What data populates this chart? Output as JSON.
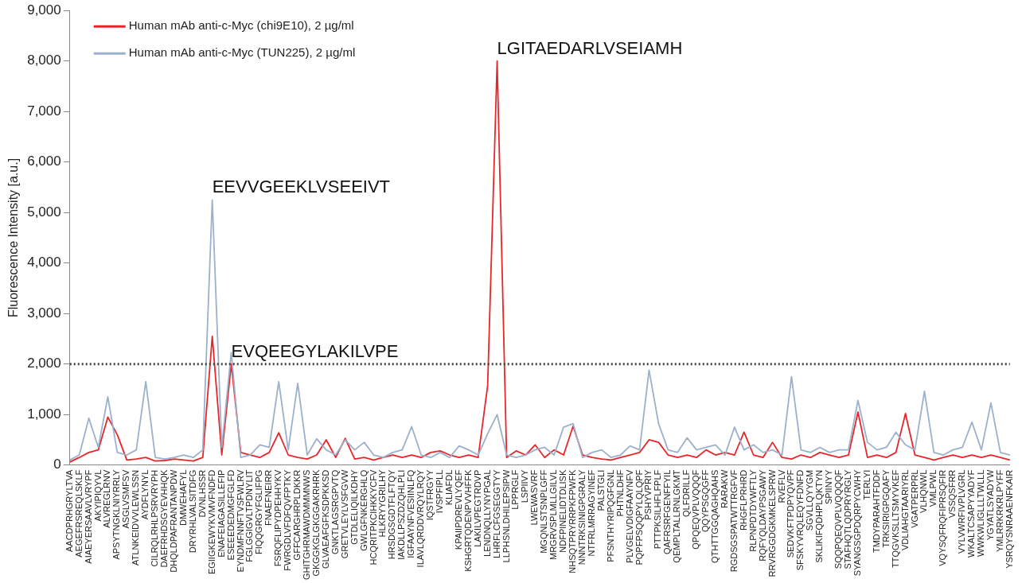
{
  "chart_data": {
    "type": "line",
    "ylabel": "Fluorescence Intensity [a.u.]",
    "categories": [
      "AACDPRHGRYLTVA",
      "AEGEFRSREQLSKLF",
      "AIAEYERSAAVLVRYPF",
      "AKYIPIQYVL",
      "ALVREGLRNV",
      "APSYTNGKLNIYRRLY",
      "ASGLVSMFSV",
      "ATLNKEIDVVLEWLSSN",
      "AYDFLYNYL",
      "CILRQLRHLPSRVRYPH",
      "DAEFRHDSGYEVHHQK",
      "DHQLDPAFRANTANPDW",
      "DMWEHAFYL",
      "DRYRHLVALSITDFG",
      "DVNLHSSR",
      "EGIIGKEWYKVMVFNDFD",
      "ENAFEIAGASILLEFIP",
      "ESEEEDEDMGFGLFD",
      "EYNDMFNNFTVSFWLRV",
      "FGLGGIGVLTPDNYLIT",
      "FIQQGRGYFGLIFPG",
      "FNAEFNEIRR",
      "FSRQFLIPYDPEHHYKV",
      "FWRGDLVFDFQVFPTKY",
      "GFFCARGHRPLDKKR",
      "GHITGHRMAWDMMMNWS",
      "GKGGKGLGKGGAKRHRK",
      "GLVAEAFGFKSDPKKSD",
      "GNKTLAGSRGPVTQ",
      "GRETVLEYLVSFGVW",
      "GTDLELIQILKDHY",
      "GWLGFNKERGHLQ",
      "HCQRITPKCIHKKYCFV",
      "HLKRYYGRILHY",
      "HRSDGSGDTFLFTQY",
      "IAKDLLPSZDZQHLPLI",
      "IGFAAYNFVESIINLFQ",
      "ILAVLQRDDVRQYLRQY",
      "IQSTFRGYY",
      "IVSPFIPLL",
      "KLIAFDL",
      "KPAIIPDREVLYQEF",
      "KSHGRTQDENPVVHFFK",
      "LAKILVPEGTRDVP",
      "LENDNQLLYNYPGAL",
      "LHRFLCFGSEGGTYY",
      "LLPHSNLDHILEPSIPW",
      "LPPRGLF",
      "LSPIIVY",
      "LWEWASVRF",
      "MGQNLSTSNPLGFF",
      "MRGRVSPLMLLGILVL",
      "NDFPINELIDTDLISK",
      "NHSQTPRYRRPKFPWFK",
      "NNNTRKSINIGPGRALY",
      "NTFRLMRRAGYINEF",
      "PALSTGLI",
      "PFSNTHYRIPQGFGNL",
      "PHTNLDHF",
      "PLVGELVDIGFAAYNFV",
      "PQPFPSQQPYLQLQPF",
      "PSHYVPRIY",
      "PTTPKSILHFLFPLF",
      "QAFRSRFGENFFYIL",
      "QEMPLTALLRNLGKMT",
      "QLFDRILLF",
      "QPQEQVPLVQQQF",
      "QQYPSGQGFF",
      "QTHTTGGQAGHQAHS",
      "RARAKW",
      "RGDSGSPATWTTRGFVF",
      "RHGFLPRHRD",
      "RLPNPDTDYWFTLY",
      "RQFYQLDAYPSGAWY",
      "RRVRGGDGKMKELSPRW",
      "RVEFLV",
      "SEDVKFTPDPYQVPF",
      "SFSKYVRQLEQYFDNFD",
      "SGVLLQYYGM",
      "SKLIKIFQDHPLQKTYN",
      "SPIINYY",
      "SQQPQEQVPLVQQQQF",
      "STAFHQTLQDPRYRGLY",
      "SYANGSGPDQRPYCWHY",
      "TERLYI",
      "TMDYPARAHTFDDF",
      "TRKSIRIGPGQAFY",
      "TTQGVKSLLTSMYVKEF",
      "VDLIAHGTAARIYRL",
      "VGATPERPRL",
      "VLHQNWL",
      "VMLPWL",
      "VQYSQFRQFIPRSQFIR",
      "VSSQSFRR",
      "VYLVWRFIVPLVGRL",
      "WKALTCSAPYYADYF",
      "WWKWLIGLLLTWLLL",
      "YGYATLSYADYW",
      "YMLRRKRKRLPYFF",
      "YSRQYSNRAAENFKAIR"
    ],
    "series": [
      {
        "name": "Human mAb anti-c-Myc (TUN225), 2 µg/ml",
        "color": "#9bb1cc",
        "values": [
          100,
          200,
          930,
          350,
          1350,
          250,
          200,
          300,
          1650,
          150,
          120,
          150,
          200,
          150,
          300,
          5250,
          350,
          2230,
          150,
          200,
          400,
          350,
          1650,
          300,
          1620,
          200,
          520,
          300,
          200,
          500,
          300,
          450,
          200,
          150,
          250,
          300,
          760,
          200,
          150,
          250,
          150,
          380,
          300,
          200,
          620,
          1000,
          200,
          150,
          200,
          300,
          350,
          200,
          750,
          820,
          150,
          250,
          300,
          150,
          200,
          380,
          300,
          1880,
          820,
          300,
          250,
          540,
          300,
          350,
          400,
          200,
          750,
          300,
          400,
          250,
          300,
          200,
          1750,
          300,
          250,
          350,
          250,
          300,
          300,
          1280,
          450,
          300,
          350,
          650,
          400,
          300,
          1460,
          250,
          200,
          300,
          350,
          850,
          300,
          1230,
          250,
          200
        ]
      },
      {
        "name": "Human mAb anti-c-Myc (chi9E10), 2 µg/ml",
        "color": "#e8262a",
        "values": [
          60,
          150,
          250,
          300,
          950,
          600,
          100,
          120,
          150,
          80,
          90,
          120,
          100,
          80,
          150,
          2550,
          200,
          2000,
          250,
          200,
          150,
          250,
          640,
          200,
          150,
          120,
          200,
          500,
          150,
          530,
          120,
          150,
          100,
          150,
          200,
          150,
          200,
          150,
          250,
          280,
          200,
          150,
          200,
          150,
          1570,
          8000,
          150,
          280,
          200,
          400,
          150,
          300,
          200,
          770,
          200,
          150,
          120,
          100,
          150,
          200,
          250,
          500,
          450,
          200,
          150,
          200,
          150,
          300,
          200,
          250,
          200,
          650,
          200,
          150,
          450,
          150,
          120,
          200,
          150,
          250,
          200,
          150,
          200,
          1050,
          150,
          200,
          150,
          250,
          1020,
          200,
          150,
          100,
          150,
          200,
          150,
          200,
          150,
          200,
          150,
          100
        ]
      }
    ],
    "ylim": [
      0,
      9000
    ],
    "yticks": [
      0,
      {
        "value": 1000,
        "label": "1,000"
      },
      {
        "value": 2000,
        "label": "2,000"
      },
      {
        "value": 3000,
        "label": "3,000"
      },
      {
        "value": 4000,
        "label": "4,000"
      },
      {
        "value": 5000,
        "label": "5,000"
      },
      {
        "value": 6000,
        "label": "6,000"
      },
      {
        "value": 7000,
        "label": "7,000"
      },
      {
        "value": 8000,
        "label": "8,000"
      },
      {
        "value": 9000,
        "label": "9,000"
      }
    ],
    "ref_lines": [
      {
        "axis": "y",
        "value": 2000,
        "color": "#444444",
        "line_style": "dotted"
      }
    ],
    "annotations": [
      {
        "text": "LGITAEDARLVSEIAMH",
        "x": "LHRFLCFGSEGGTYY",
        "y": 8000
      },
      {
        "text": "EEVVGEEKLVSEEIVT",
        "x": "EGIIGKEWYKVMVFNDFD",
        "y": 5250
      },
      {
        "text": "EVQEEGYLAKILVPE",
        "x": "ESEEEDEDMGFGLFD",
        "y": 2000
      }
    ],
    "legend": "top left",
    "marker": "none",
    "grid": false,
    "line_style": "solid"
  }
}
